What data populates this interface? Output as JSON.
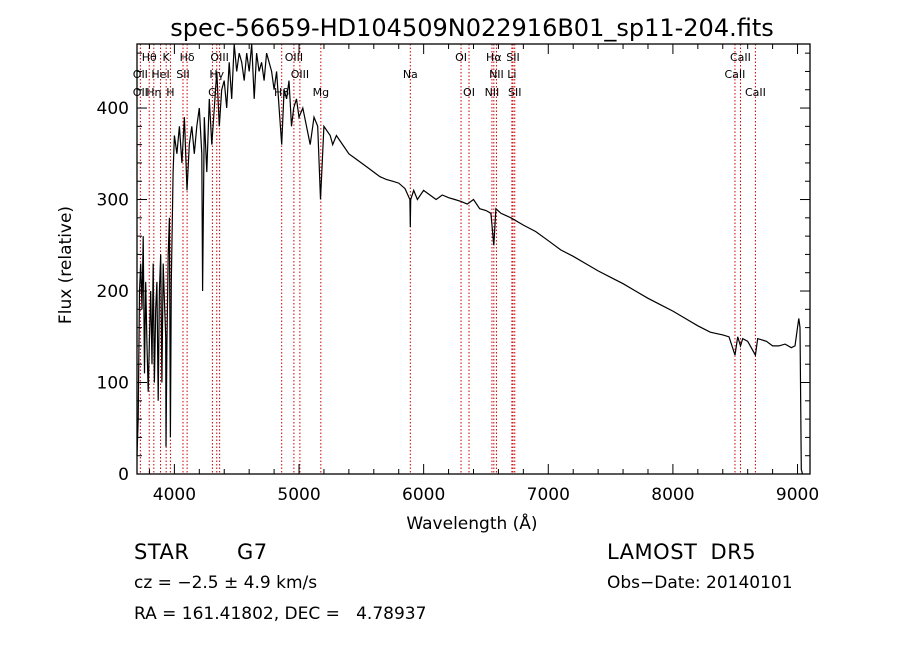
{
  "chart_data": {
    "type": "line",
    "title": "spec-56659-HD104509N022916B01_sp11-204.fits",
    "xlabel": "Wavelength (Å)",
    "ylabel": "Flux (relative)",
    "xlim": [
      3700,
      9100
    ],
    "ylim": [
      0,
      470
    ],
    "xticks": [
      4000,
      5000,
      6000,
      7000,
      8000,
      9000
    ],
    "yticks": [
      0,
      100,
      200,
      300,
      400
    ],
    "grid": false,
    "series": [
      {
        "x": [
          3700,
          3710,
          3720,
          3730,
          3740,
          3750,
          3760,
          3770,
          3780,
          3790,
          3800,
          3810,
          3820,
          3830,
          3840,
          3850,
          3860,
          3870,
          3880,
          3890,
          3900,
          3910,
          3920,
          3930,
          3933,
          3940,
          3950,
          3960,
          3968,
          3975,
          3990,
          4000,
          4020,
          4040,
          4060,
          4080,
          4101,
          4120,
          4140,
          4160,
          4180,
          4200,
          4220,
          4226,
          4240,
          4260,
          4280,
          4300,
          4320,
          4340,
          4360,
          4380,
          4400,
          4420,
          4440,
          4460,
          4480,
          4500,
          4520,
          4540,
          4560,
          4580,
          4600,
          4620,
          4640,
          4660,
          4680,
          4700,
          4720,
          4740,
          4760,
          4780,
          4800,
          4820,
          4840,
          4861,
          4880,
          4900,
          4920,
          4940,
          4957,
          4980,
          5000,
          5030,
          5060,
          5090,
          5120,
          5150,
          5172,
          5183,
          5200,
          5250,
          5270,
          5300,
          5350,
          5400,
          5450,
          5500,
          5550,
          5600,
          5650,
          5700,
          5750,
          5800,
          5850,
          5890,
          5893,
          5896,
          5920,
          5950,
          6000,
          6050,
          6100,
          6150,
          6200,
          6250,
          6300,
          6350,
          6400,
          6450,
          6500,
          6540,
          6563,
          6580,
          6620,
          6700,
          6800,
          6900,
          7000,
          7100,
          7200,
          7300,
          7400,
          7500,
          7600,
          7700,
          7800,
          7900,
          8000,
          8100,
          8200,
          8300,
          8400,
          8450,
          8498,
          8520,
          8542,
          8560,
          8600,
          8662,
          8680,
          8750,
          8800,
          8850,
          8900,
          8950,
          8980,
          9000,
          9010,
          9020,
          9030,
          9040
        ],
        "values": [
          20,
          60,
          200,
          230,
          180,
          260,
          110,
          210,
          140,
          90,
          150,
          200,
          120,
          230,
          100,
          180,
          210,
          80,
          200,
          240,
          100,
          230,
          190,
          150,
          30,
          140,
          240,
          280,
          40,
          210,
          330,
          370,
          350,
          380,
          340,
          390,
          310,
          360,
          380,
          350,
          380,
          400,
          350,
          200,
          390,
          330,
          410,
          360,
          400,
          440,
          380,
          420,
          430,
          400,
          450,
          410,
          470,
          440,
          460,
          450,
          430,
          460,
          440,
          470,
          410,
          460,
          440,
          450,
          430,
          460,
          450,
          440,
          420,
          440,
          400,
          360,
          420,
          410,
          430,
          380,
          400,
          410,
          390,
          400,
          380,
          360,
          390,
          380,
          300,
          330,
          380,
          370,
          360,
          370,
          360,
          350,
          345,
          340,
          335,
          330,
          325,
          322,
          320,
          318,
          312,
          300,
          270,
          300,
          310,
          300,
          310,
          305,
          300,
          305,
          302,
          300,
          298,
          295,
          300,
          290,
          288,
          285,
          250,
          290,
          285,
          280,
          272,
          265,
          255,
          245,
          238,
          230,
          222,
          215,
          208,
          200,
          192,
          185,
          178,
          170,
          162,
          155,
          152,
          150,
          130,
          150,
          140,
          148,
          145,
          130,
          148,
          145,
          140,
          140,
          142,
          138,
          140,
          160,
          170,
          160,
          5,
          0
        ]
      }
    ],
    "line_annotations": [
      {
        "label": "Hθ",
        "wl": 3798,
        "row": 1
      },
      {
        "label": "K",
        "wl": 3934,
        "row": 1
      },
      {
        "label": "Hδ",
        "wl": 4102,
        "row": 1
      },
      {
        "label": "OIII",
        "wl": 4363,
        "row": 1
      },
      {
        "label": "OIII",
        "wl": 4959,
        "row": 1
      },
      {
        "label": "OI",
        "wl": 6300,
        "row": 1
      },
      {
        "label": "Hα",
        "wl": 6563,
        "row": 1
      },
      {
        "label": "SII",
        "wl": 6717,
        "row": 1
      },
      {
        "label": "CaII",
        "wl": 8542,
        "row": 1
      },
      {
        "label": "OII",
        "wl": 3727,
        "row": 2
      },
      {
        "label": "HeI",
        "wl": 3889,
        "row": 2
      },
      {
        "label": "SII",
        "wl": 4069,
        "row": 2
      },
      {
        "label": "Hγ",
        "wl": 4340,
        "row": 2
      },
      {
        "label": "OIII",
        "wl": 5007,
        "row": 2
      },
      {
        "label": "Na",
        "wl": 5893,
        "row": 2
      },
      {
        "label": "NII",
        "wl": 6584,
        "row": 2
      },
      {
        "label": "Li",
        "wl": 6708,
        "row": 2
      },
      {
        "label": "CaII",
        "wl": 8498,
        "row": 2
      },
      {
        "label": "OII",
        "wl": 3727,
        "row": 3
      },
      {
        "label": "Hη",
        "wl": 3835,
        "row": 3
      },
      {
        "label": "H",
        "wl": 3968,
        "row": 3
      },
      {
        "label": "G",
        "wl": 4305,
        "row": 3
      },
      {
        "label": "Hβ",
        "wl": 4861,
        "row": 3
      },
      {
        "label": "Mg",
        "wl": 5175,
        "row": 3
      },
      {
        "label": "OI",
        "wl": 6364,
        "row": 3
      },
      {
        "label": "NII",
        "wl": 6548,
        "row": 3
      },
      {
        "label": "SII",
        "wl": 6731,
        "row": 3
      },
      {
        "label": "CaII",
        "wl": 8662,
        "row": 3
      }
    ]
  },
  "info": {
    "object_type": "STAR",
    "subclass": "G7",
    "survey": "LAMOST DR5",
    "cz_line": "cz = −2.5 ± 4.9 km/s",
    "obs_date": "Obs−Date: 20140101",
    "coords": "RA = 161.41802, DEC =   4.78937"
  },
  "colors": {
    "spectrum": "#000000",
    "marker_lines": "#cc0000",
    "text": "#000000"
  }
}
